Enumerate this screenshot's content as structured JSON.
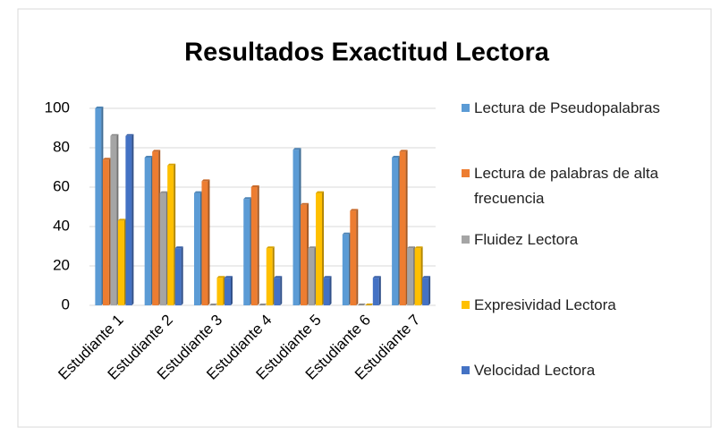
{
  "chart_data": {
    "type": "bar",
    "title": "Resultados Exactitud Lectora",
    "categories": [
      "Estudiante 1",
      "Estudiante 2",
      "Estudiante 3",
      "Estudiante 4",
      "Estudiante 5",
      "Estudiante 6",
      "Estudiante 7"
    ],
    "series": [
      {
        "name": "Lectura de Pseudopalabras",
        "color": "#5b9bd5",
        "values": [
          100,
          75,
          57,
          54,
          79,
          36,
          75
        ]
      },
      {
        "name": "Lectura de palabras de alta frecuencia",
        "color": "#ed7d31",
        "values": [
          74,
          78,
          63,
          60,
          51,
          48,
          78
        ]
      },
      {
        "name": "Fluidez Lectora",
        "color": "#a5a5a5",
        "values": [
          86,
          57,
          0,
          0,
          29,
          0,
          29
        ]
      },
      {
        "name": "Expresividad Lectora",
        "color": "#ffc000",
        "values": [
          43,
          71,
          14,
          29,
          57,
          0,
          29
        ]
      },
      {
        "name": "Velocidad Lectora",
        "color": "#4472c4",
        "values": [
          86,
          29,
          14,
          14,
          14,
          14,
          14
        ]
      }
    ],
    "ylim": [
      0,
      100
    ],
    "yticks": [
      0,
      20,
      40,
      60,
      80,
      100
    ],
    "grid": true,
    "legend": "right"
  }
}
